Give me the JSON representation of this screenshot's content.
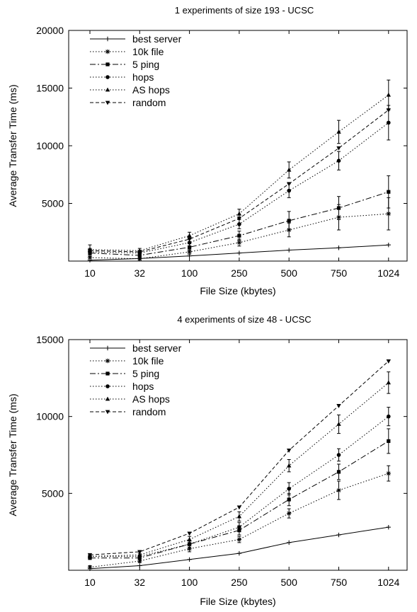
{
  "charts": [
    {
      "title": "1 experiments of size 193 -  UCSC",
      "xlabel": "File Size (kbytes)",
      "ylabel": "Average Transfer Time (ms)",
      "categories": [
        "10",
        "32",
        "100",
        "250",
        "500",
        "750",
        "1024"
      ],
      "yticks": [
        "5000",
        "10000",
        "15000",
        "20000"
      ],
      "series_names": [
        "best server",
        "10k file",
        "5 ping",
        "hops",
        "AS hops",
        "random"
      ]
    },
    {
      "title": "4 experiments of size 48 -  UCSC",
      "xlabel": "File Size (kbytes)",
      "ylabel": "Average Transfer Time (ms)",
      "categories": [
        "10",
        "32",
        "100",
        "250",
        "500",
        "750",
        "1024"
      ],
      "yticks": [
        "5000",
        "10000",
        "15000"
      ],
      "series_names": [
        "best server",
        "10k file",
        "5 ping",
        "hops",
        "AS hops",
        "random"
      ]
    }
  ],
  "chart_data": [
    {
      "type": "line",
      "title": "1 experiments of size 193 -  UCSC",
      "xlabel": "File Size (kbytes)",
      "ylabel": "Average Transfer Time (ms)",
      "categories": [
        "10",
        "32",
        "100",
        "250",
        "500",
        "750",
        "1024"
      ],
      "ylim": [
        0,
        20000
      ],
      "yticks": [
        5000,
        10000,
        15000,
        20000
      ],
      "legend": "top-left",
      "grid": false,
      "series": [
        {
          "name": "best server",
          "marker": "plus",
          "dash": "",
          "values": [
            80,
            220,
            450,
            700,
            950,
            1150,
            1400
          ]
        },
        {
          "name": "10k file",
          "marker": "star",
          "dash": "1.5,2.5",
          "values": [
            300,
            200,
            800,
            1600,
            2700,
            3800,
            4100
          ],
          "err": [
            0,
            100,
            200,
            300,
            600,
            1100,
            1400
          ]
        },
        {
          "name": "5 ping",
          "marker": "square",
          "dash": "8,3,2,3",
          "values": [
            700,
            500,
            1200,
            2200,
            3500,
            4600,
            6000
          ],
          "err": [
            300,
            150,
            300,
            400,
            800,
            1000,
            1400
          ]
        },
        {
          "name": "hops",
          "marker": "circle",
          "dash": "1.5,2.5",
          "values": [
            800,
            700,
            1600,
            3200,
            6100,
            8700,
            12000
          ],
          "err": [
            300,
            200,
            300,
            400,
            600,
            800,
            1500
          ]
        },
        {
          "name": "AS hops",
          "marker": "triangle-up",
          "dash": "1.5,2.5",
          "values": [
            1000,
            900,
            2200,
            4100,
            7900,
            11200,
            14400
          ],
          "err": [
            400,
            200,
            300,
            400,
            700,
            1000,
            1300
          ]
        },
        {
          "name": "random",
          "marker": "triangle-down",
          "dash": "5,3",
          "values": [
            900,
            800,
            1900,
            3700,
            6700,
            9800,
            13100
          ]
        }
      ]
    },
    {
      "type": "line",
      "title": "4 experiments of size 48 -  UCSC",
      "xlabel": "File Size (kbytes)",
      "ylabel": "Average Transfer Time (ms)",
      "categories": [
        "10",
        "32",
        "100",
        "250",
        "500",
        "750",
        "1024"
      ],
      "ylim": [
        0,
        15000
      ],
      "yticks": [
        5000,
        10000,
        15000
      ],
      "legend": "top-left",
      "grid": false,
      "series": [
        {
          "name": "best server",
          "marker": "plus",
          "dash": "",
          "values": [
            100,
            300,
            700,
            1100,
            1800,
            2300,
            2800
          ]
        },
        {
          "name": "10k file",
          "marker": "star",
          "dash": "1.5,2.5",
          "values": [
            200,
            600,
            1400,
            2000,
            3700,
            5200,
            6300
          ],
          "err": [
            100,
            100,
            200,
            200,
            300,
            600,
            500
          ]
        },
        {
          "name": "5 ping",
          "marker": "square",
          "dash": "8,3,2,3",
          "values": [
            800,
            800,
            1700,
            2600,
            4600,
            6400,
            8400
          ],
          "err": [
            100,
            100,
            200,
            300,
            400,
            500,
            800
          ]
        },
        {
          "name": "hops",
          "marker": "circle",
          "dash": "1.5,2.5",
          "values": [
            900,
            900,
            1700,
            2800,
            5300,
            7500,
            10000
          ],
          "err": [
            100,
            100,
            200,
            300,
            400,
            400,
            600
          ]
        },
        {
          "name": "AS hops",
          "marker": "triangle-up",
          "dash": "1.5,2.5",
          "values": [
            900,
            1000,
            2000,
            3500,
            6800,
            9500,
            12200
          ],
          "err": [
            100,
            100,
            200,
            300,
            400,
            600,
            700
          ]
        },
        {
          "name": "random",
          "marker": "triangle-down",
          "dash": "5,3",
          "values": [
            1000,
            1200,
            2400,
            4100,
            7800,
            10700,
            13600
          ]
        }
      ]
    }
  ]
}
